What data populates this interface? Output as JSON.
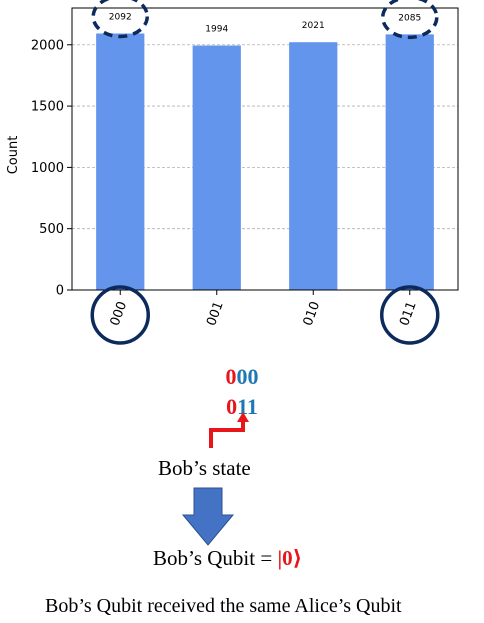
{
  "chart_data": {
    "type": "bar",
    "categories": [
      "000",
      "001",
      "010",
      "011"
    ],
    "values": [
      2092,
      1994,
      2021,
      2085
    ],
    "value_labels": [
      "2092",
      "1994",
      "2021",
      "2085"
    ],
    "title": "",
    "xlabel": "",
    "ylabel": "Count",
    "ylim": [
      0,
      2300
    ],
    "yticks": [
      0,
      500,
      1000,
      1500,
      2000
    ],
    "ytick_labels": [
      "0",
      "500",
      "1000",
      "1500",
      "2000"
    ],
    "grid": "horizontal-dashed",
    "bar_color": "#6495ed",
    "highlighted_categories": [
      "000",
      "011"
    ]
  },
  "annotation": {
    "line1": {
      "first": "0",
      "rest": "00"
    },
    "line2": {
      "first": "0",
      "rest": "11"
    },
    "bob_state": "Bob’s state",
    "bob_qubit_prefix": "Bob’s Qubit = ",
    "bob_qubit_ket": "|0⟩",
    "conclusion": "Bob’s Qubit received the same Alice’s Qubit"
  },
  "colors": {
    "highlight_red": "#e8151b",
    "highlight_blue": "#1f78b4",
    "circle": "#0d2a5c",
    "arrow": "#4472c4"
  }
}
